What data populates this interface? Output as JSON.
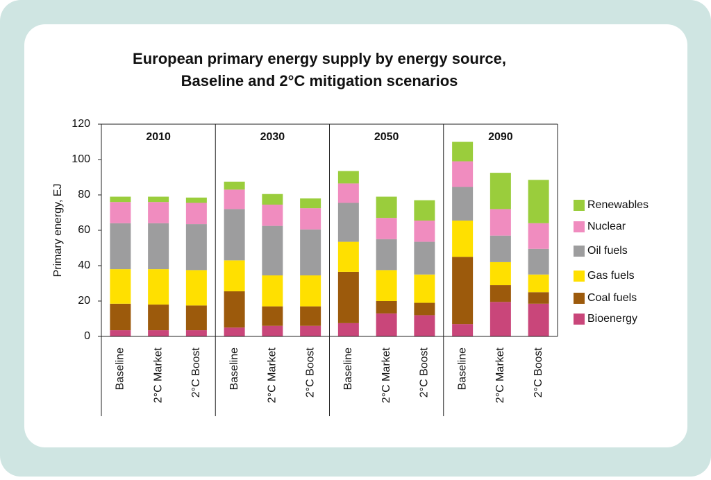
{
  "chart_data": {
    "type": "grouped-stacked-bar",
    "title": [
      "European primary energy supply by energy source,",
      "Baseline and 2°C mitigation scenarios"
    ],
    "y_label": "Primary energy, EJ",
    "groups": [
      "2010",
      "2030",
      "2050",
      "2090"
    ],
    "categories": [
      "Baseline",
      "2°C Market",
      "2°C Boost",
      "Baseline",
      "2°C Market",
      "2°C Boost",
      "Baseline",
      "2°C Market",
      "2°C Boost",
      "Baseline",
      "2°C Market",
      "2°C Boost"
    ],
    "ylim": [
      0,
      120
    ],
    "yticks": [
      0,
      20,
      40,
      60,
      80,
      100,
      120
    ],
    "series": [
      {
        "name": "Bioenergy",
        "color": "#c9467a",
        "values": [
          3.5,
          3.5,
          3.5,
          5,
          6,
          6,
          7.5,
          13,
          12,
          7,
          19.5,
          18.5
        ]
      },
      {
        "name": "Coal fuels",
        "color": "#9c5a0c",
        "values": [
          15,
          14.5,
          14,
          20.5,
          11,
          11,
          29,
          7,
          7,
          38,
          9.5,
          6.5
        ]
      },
      {
        "name": "Gas fuels",
        "color": "#ffe000",
        "values": [
          19.5,
          20,
          20,
          17.5,
          17.5,
          17.5,
          17,
          17.5,
          16,
          20.5,
          13,
          10
        ]
      },
      {
        "name": "Oil fuels",
        "color": "#9d9d9e",
        "values": [
          26,
          26,
          26,
          29,
          28,
          26,
          22,
          17.5,
          18.5,
          19,
          15,
          14.5
        ]
      },
      {
        "name": "Nuclear",
        "color": "#f08cbf",
        "values": [
          12,
          12,
          12,
          11,
          12,
          12,
          11,
          12,
          12,
          14.5,
          15,
          14.5
        ]
      },
      {
        "name": "Renewables",
        "color": "#9acd3c",
        "values": [
          3,
          3,
          3,
          4.5,
          6,
          5.5,
          7,
          12,
          11.5,
          11,
          20.5,
          24.5
        ]
      }
    ]
  }
}
